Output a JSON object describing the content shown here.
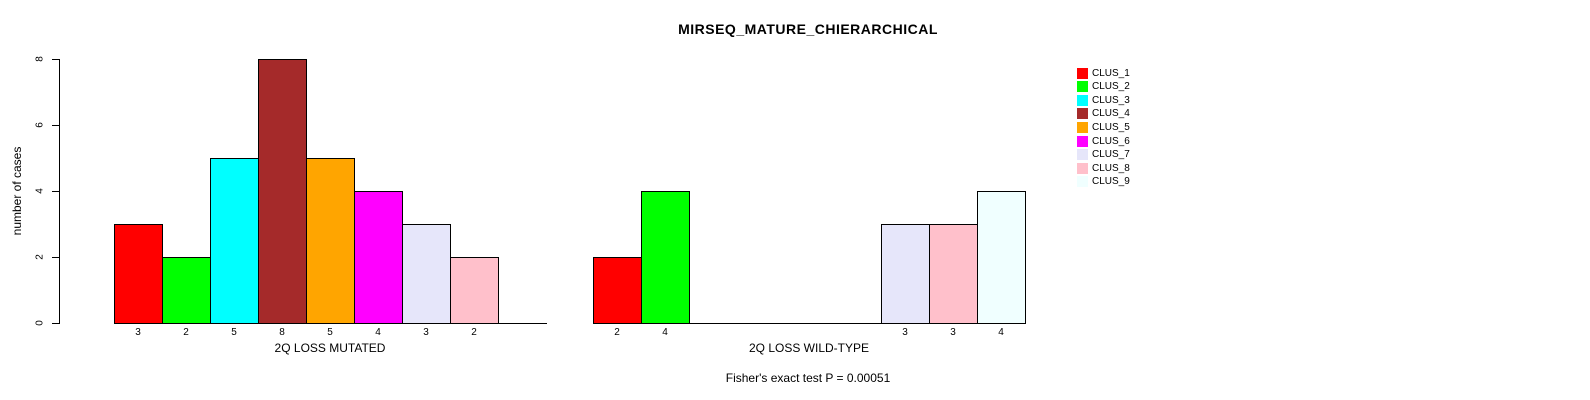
{
  "chart_data": {
    "type": "bar",
    "title": "MIRSEQ_MATURE_CHIERARCHICAL",
    "ylabel": "number of cases",
    "ylim": [
      0,
      8
    ],
    "yticks": [
      0,
      2,
      4,
      6,
      8
    ],
    "grid": false,
    "legend_position": "right",
    "series_names": [
      "CLUS_1",
      "CLUS_2",
      "CLUS_3",
      "CLUS_4",
      "CLUS_5",
      "CLUS_6",
      "CLUS_7",
      "CLUS_8",
      "CLUS_9"
    ],
    "colors": [
      "#FF0000",
      "#00FF00",
      "#00FFFF",
      "#A52A2A",
      "#FFA500",
      "#FF00FF",
      "#E6E6FA",
      "#FFC0CB",
      "#F0FFFF"
    ],
    "color_names": [
      "red",
      "green",
      "cyan",
      "brown",
      "orange",
      "magenta",
      "lavender",
      "pink",
      "azure"
    ],
    "groups": [
      {
        "label": "2Q LOSS MUTATED",
        "values": [
          3,
          2,
          5,
          8,
          5,
          4,
          3,
          2,
          0
        ]
      },
      {
        "label": "2Q LOSS WILD-TYPE",
        "values": [
          2,
          4,
          0,
          0,
          0,
          0,
          3,
          3,
          4
        ]
      }
    ],
    "annotation": "Fisher's exact test P = 0.00051"
  }
}
